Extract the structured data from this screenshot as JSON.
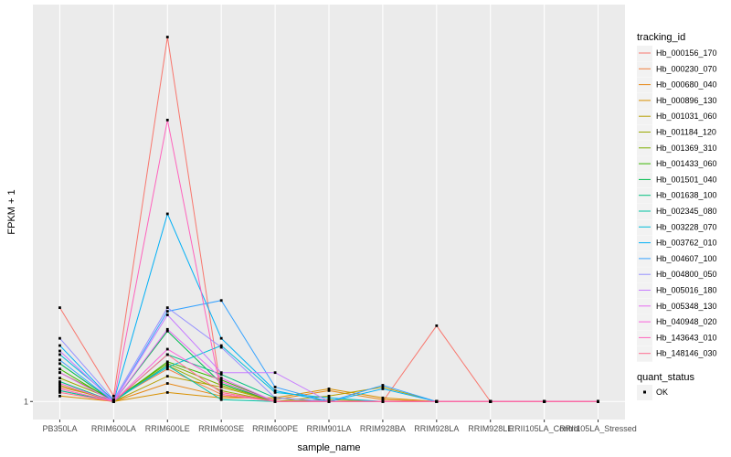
{
  "chart_data": {
    "type": "line",
    "xlabel": "sample_name",
    "ylabel": "FPKM + 1",
    "y_ticks": [
      1
    ],
    "ylim": [
      0.9,
      3.2
    ],
    "grid": true,
    "legend_position": "right",
    "legend_title": "tracking_id",
    "shape_legend_title": "quant_status",
    "shape_legend_items": [
      "OK"
    ],
    "categories": [
      "PB350LA",
      "RRIM600LA",
      "RRIM600LE",
      "RRIM600SE",
      "RRIM600PE",
      "RRIM901LA",
      "RRIM928BA",
      "RRIM928LA",
      "RRIM928LE",
      "RRII105LA_Control",
      "RRII105LA_Stressed"
    ],
    "series": [
      {
        "name": "Hb_000156_170",
        "color": "#F8766D",
        "values": [
          1.52,
          1.03,
          3.02,
          1.05,
          1.0,
          1.0,
          1.0,
          1.42,
          1.0,
          1.0,
          1.0
        ]
      },
      {
        "name": "Hb_000230_070",
        "color": "#F07F3F",
        "values": [
          1.08,
          1.01,
          1.18,
          1.04,
          1.0,
          1.0,
          1.0,
          1.0,
          1.0,
          1.0,
          1.0
        ]
      },
      {
        "name": "Hb_000680_040",
        "color": "#E68613",
        "values": [
          1.06,
          1.0,
          1.1,
          1.03,
          1.01,
          1.06,
          1.01,
          1.0,
          1.0,
          1.0,
          1.0
        ]
      },
      {
        "name": "Hb_000896_130",
        "color": "#D89000",
        "values": [
          1.03,
          1.0,
          1.05,
          1.02,
          1.02,
          1.07,
          1.02,
          1.0,
          1.0,
          1.0,
          1.0
        ]
      },
      {
        "name": "Hb_001031_060",
        "color": "#B79F00",
        "values": [
          1.09,
          1.0,
          1.14,
          1.08,
          1.0,
          1.03,
          1.08,
          1.0,
          1.0,
          1.0,
          1.0
        ]
      },
      {
        "name": "Hb_001184_120",
        "color": "#9AA800",
        "values": [
          1.13,
          1.01,
          1.2,
          1.06,
          1.0,
          1.01,
          1.0,
          1.0,
          1.0,
          1.0,
          1.0
        ]
      },
      {
        "name": "Hb_001369_310",
        "color": "#7CAE00",
        "values": [
          1.16,
          1.01,
          1.21,
          1.09,
          1.0,
          1.0,
          1.0,
          1.0,
          1.0,
          1.0,
          1.0
        ]
      },
      {
        "name": "Hb_001433_060",
        "color": "#39B600",
        "values": [
          1.18,
          1.0,
          1.22,
          1.12,
          1.0,
          1.0,
          1.0,
          1.0,
          1.0,
          1.0,
          1.0
        ]
      },
      {
        "name": "Hb_001501_040",
        "color": "#00BB4E",
        "values": [
          1.21,
          1.0,
          1.39,
          1.1,
          1.0,
          1.0,
          1.0,
          1.0,
          1.0,
          1.0,
          1.0
        ]
      },
      {
        "name": "Hb_001638_100",
        "color": "#00BF7D",
        "values": [
          1.11,
          1.0,
          1.26,
          1.15,
          1.02,
          1.0,
          1.0,
          1.0,
          1.0,
          1.0,
          1.0
        ]
      },
      {
        "name": "Hb_002345_080",
        "color": "#00C1A3",
        "values": [
          1.06,
          1.0,
          1.2,
          1.01,
          1.0,
          1.0,
          1.0,
          1.0,
          1.0,
          1.0,
          1.0
        ]
      },
      {
        "name": "Hb_003228_070",
        "color": "#00BCD8",
        "values": [
          1.26,
          1.01,
          1.19,
          1.31,
          1.05,
          1.02,
          1.0,
          1.0,
          1.0,
          1.0,
          1.0
        ]
      },
      {
        "name": "Hb_003762_010",
        "color": "#00B0F6",
        "values": [
          1.31,
          1.0,
          2.04,
          1.35,
          1.06,
          1.0,
          1.07,
          1.0,
          1.0,
          1.0,
          1.0
        ]
      },
      {
        "name": "Hb_004607_100",
        "color": "#35A2FF",
        "values": [
          1.23,
          1.0,
          1.5,
          1.56,
          1.08,
          1.0,
          1.09,
          1.0,
          1.0,
          1.0,
          1.0
        ]
      },
      {
        "name": "Hb_004800_050",
        "color": "#9590FF",
        "values": [
          1.35,
          1.01,
          1.52,
          1.3,
          1.02,
          1.0,
          1.0,
          1.0,
          1.0,
          1.0,
          1.0
        ]
      },
      {
        "name": "Hb_005016_180",
        "color": "#C77CFF",
        "values": [
          1.28,
          1.0,
          1.48,
          1.16,
          1.16,
          1.0,
          1.0,
          1.0,
          1.0,
          1.0,
          1.0
        ]
      },
      {
        "name": "Hb_005348_130",
        "color": "#E76BF3",
        "values": [
          1.16,
          1.0,
          1.4,
          1.13,
          1.0,
          1.0,
          1.0,
          1.0,
          1.0,
          1.0,
          1.0
        ]
      },
      {
        "name": "Hb_040948_020",
        "color": "#FA62DB",
        "values": [
          1.1,
          1.0,
          1.29,
          1.11,
          1.0,
          1.0,
          1.0,
          1.0,
          1.0,
          1.0,
          1.0
        ]
      },
      {
        "name": "Hb_143643_010",
        "color": "#FF62BC",
        "values": [
          1.07,
          1.0,
          2.56,
          1.04,
          1.0,
          1.0,
          1.0,
          1.0,
          1.0,
          1.0,
          1.0
        ]
      },
      {
        "name": "Hb_148146_030",
        "color": "#FF6C91",
        "values": [
          1.05,
          1.0,
          1.26,
          1.05,
          1.0,
          1.0,
          1.0,
          1.0,
          1.0,
          1.0,
          1.0
        ]
      }
    ]
  },
  "colors": {
    "panel_bg": "#EBEBEB",
    "grid_major": "#FFFFFF",
    "point": "#000000"
  }
}
